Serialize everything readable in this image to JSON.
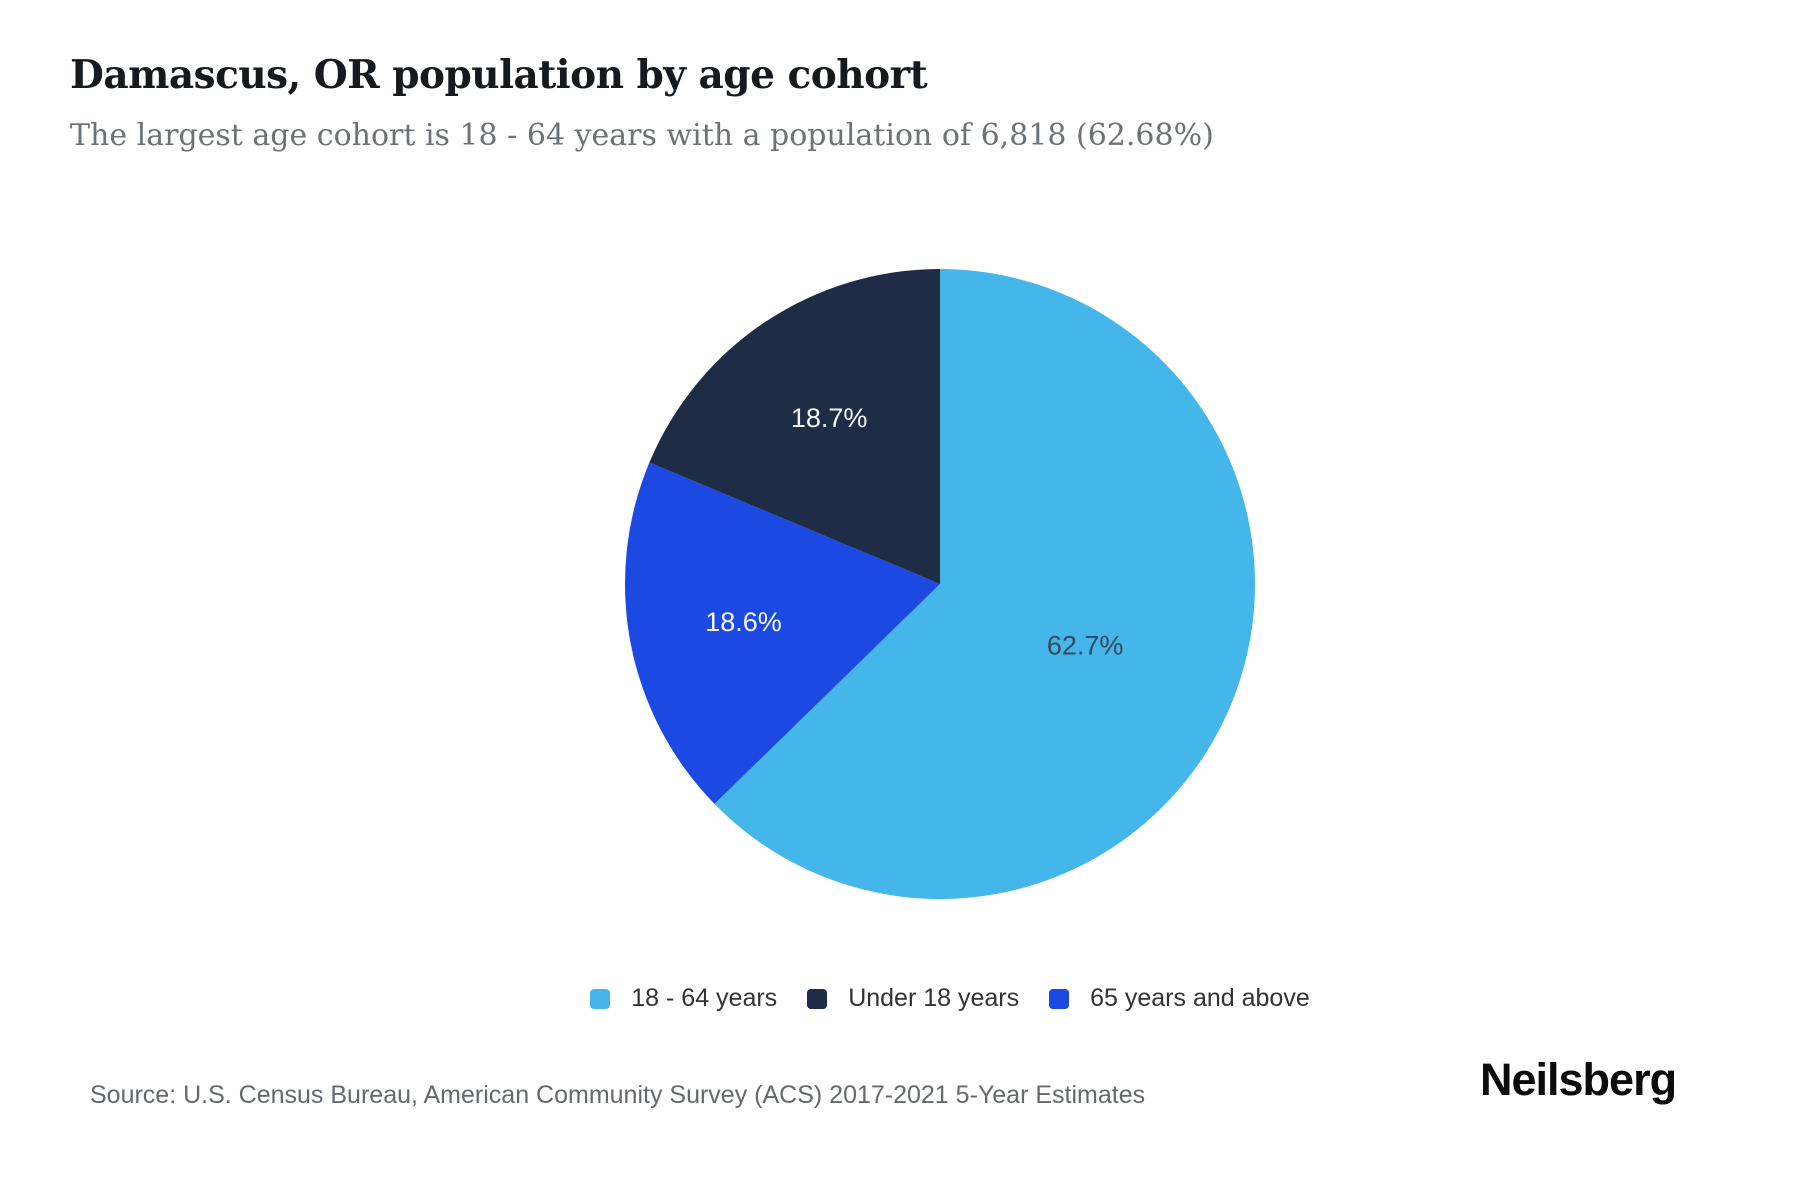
{
  "header": {
    "title": "Damascus, OR population by age cohort",
    "subtitle": "The largest age cohort is 18 - 64 years with a population of 6,818 (62.68%)"
  },
  "chart_data": {
    "type": "pie",
    "title": "Damascus, OR population by age cohort",
    "start_angle_deg": 0,
    "direction": "clockwise",
    "slices": [
      {
        "name": "18 - 64 years",
        "pct": 62.7,
        "label": "62.7%",
        "color": "#45B6E9",
        "label_color": "#35495C"
      },
      {
        "name": "65 years and above",
        "pct": 18.6,
        "label": "18.6%",
        "color": "#1D49E3",
        "label_color": "#F4F7FA"
      },
      {
        "name": "Under 18 years",
        "pct": 18.7,
        "label": "18.7%",
        "color": "#1E2D45",
        "label_color": "#F4F7FA"
      }
    ],
    "legend_order": [
      "18 - 64 years",
      "Under 18 years",
      "65 years and above"
    ],
    "legend_position": "bottom"
  },
  "footer": {
    "source": "Source: U.S. Census Bureau, American Community Survey (ACS) 2017-2021 5-Year Estimates",
    "brand": "Neilsberg"
  }
}
